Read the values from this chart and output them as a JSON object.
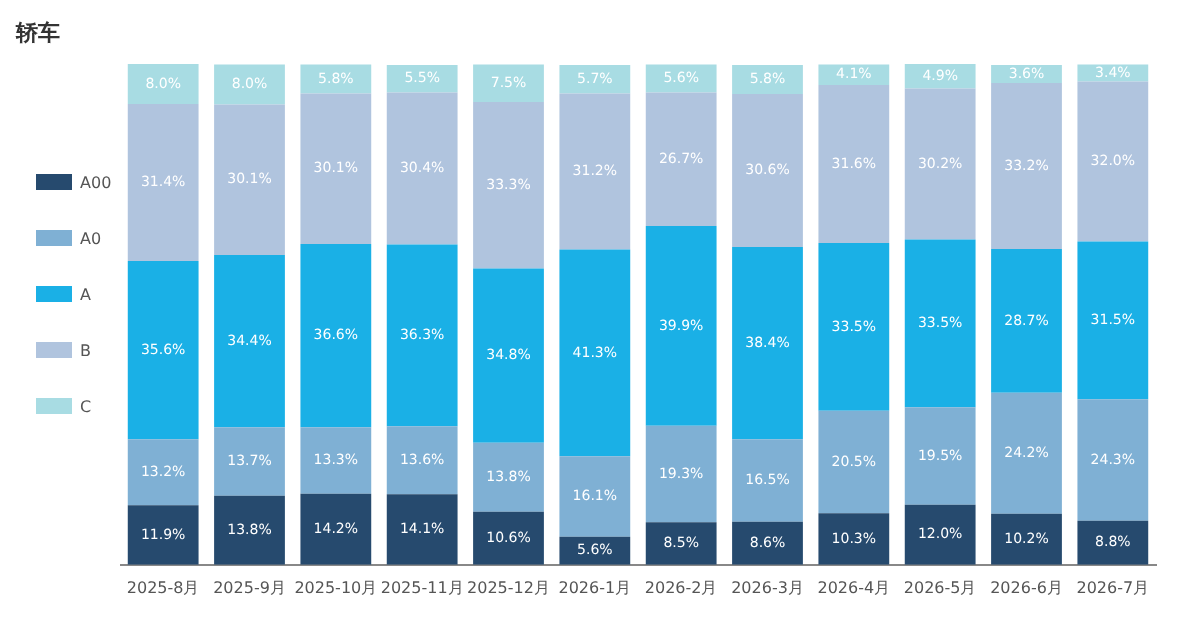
{
  "chart_data": {
    "type": "bar",
    "title": "轿车",
    "stacked": true,
    "legend": "left",
    "grid": false,
    "tick_labels": "x",
    "categories": [
      "2025-8月",
      "2025-9月",
      "2025-10月",
      "2025-11月",
      "2025-12月",
      "2026-1月",
      "2026-2月",
      "2026-3月",
      "2026-4月",
      "2026-5月",
      "2026-6月",
      "2026-7月"
    ],
    "series": [
      {
        "name": "A00",
        "color": "#264a6e",
        "values": [
          11.9,
          13.8,
          14.2,
          14.1,
          10.6,
          5.6,
          8.5,
          8.6,
          10.3,
          12.0,
          10.2,
          8.8
        ],
        "value_labels": [
          "11.9%",
          "13.8%",
          "14.2%",
          "14.1%",
          "10.6%",
          "5.6%",
          "8.5%",
          "8.6%",
          "10.3%",
          "12.0%",
          "10.2%",
          "8.8%"
        ]
      },
      {
        "name": "A0",
        "color": "#7fb0d4",
        "values": [
          13.2,
          13.7,
          13.3,
          13.6,
          13.8,
          16.1,
          19.3,
          16.5,
          20.5,
          19.5,
          24.2,
          24.3
        ],
        "value_labels": [
          "13.2%",
          "13.7%",
          "13.3%",
          "13.6%",
          "13.8%",
          "16.1%",
          "19.3%",
          "16.5%",
          "20.5%",
          "19.5%",
          "24.2%",
          "24.3%"
        ]
      },
      {
        "name": "A",
        "color": "#1ab0e6",
        "values": [
          35.6,
          34.4,
          36.6,
          36.3,
          34.8,
          41.3,
          39.9,
          38.4,
          33.5,
          33.5,
          28.7,
          31.5
        ],
        "value_labels": [
          "35.6%",
          "34.4%",
          "36.6%",
          "36.3%",
          "34.8%",
          "41.3%",
          "39.9%",
          "38.4%",
          "33.5%",
          "33.5%",
          "28.7%",
          "31.5%"
        ]
      },
      {
        "name": "B",
        "color": "#b0c4de",
        "values": [
          31.4,
          30.1,
          30.1,
          30.4,
          33.3,
          31.2,
          26.7,
          30.6,
          31.6,
          30.2,
          33.2,
          32.0
        ],
        "value_labels": [
          "31.4%",
          "30.1%",
          "30.1%",
          "30.4%",
          "33.3%",
          "31.2%",
          "26.7%",
          "30.6%",
          "31.6%",
          "30.2%",
          "33.2%",
          "32.0%"
        ]
      },
      {
        "name": "C",
        "color": "#a8dce3",
        "values": [
          8.0,
          8.0,
          5.8,
          5.5,
          7.5,
          5.7,
          5.6,
          5.8,
          4.1,
          4.9,
          3.6,
          3.4
        ],
        "value_labels": [
          "8.0%",
          "8.0%",
          "5.8%",
          "5.5%",
          "7.5%",
          "5.7%",
          "5.6%",
          "5.8%",
          "4.1%",
          "4.9%",
          "3.6%",
          "3.4%"
        ]
      }
    ]
  }
}
